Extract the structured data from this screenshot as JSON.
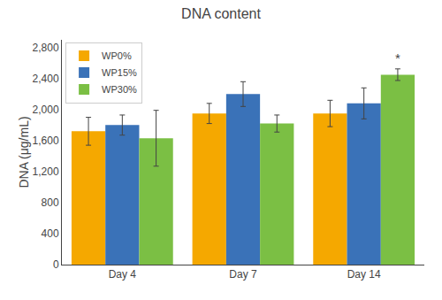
{
  "chart_data": {
    "type": "bar",
    "title": "DNA content",
    "ylabel": "DNA (μg/mL)",
    "categories": [
      "Day 4",
      "Day 7",
      "Day 14"
    ],
    "series": [
      {
        "name": "WP0%",
        "color": "#F5A800",
        "values": [
          1720,
          1950,
          1950
        ],
        "errors": [
          180,
          130,
          170
        ]
      },
      {
        "name": "WP15%",
        "color": "#3A72B8",
        "values": [
          1800,
          2200,
          2080
        ],
        "errors": [
          130,
          160,
          200
        ]
      },
      {
        "name": "WP30%",
        "color": "#7BBF44",
        "values": [
          1630,
          1820,
          2450
        ],
        "errors": [
          360,
          110,
          75
        ]
      }
    ],
    "ylim": [
      0,
      2900
    ],
    "yticks": [
      0,
      400,
      800,
      {
        "value": 1200,
        "label": "1,200"
      },
      {
        "value": 1600,
        "label": "1,600"
      },
      {
        "value": 2000,
        "label": "2,000"
      },
      {
        "value": 2400,
        "label": "2,400"
      },
      {
        "value": 2800,
        "label": "2,800"
      }
    ],
    "annotations": [
      {
        "text": "*",
        "category": "Day 14",
        "series": "WP30%"
      }
    ],
    "legend": "upper left",
    "grid": false
  }
}
